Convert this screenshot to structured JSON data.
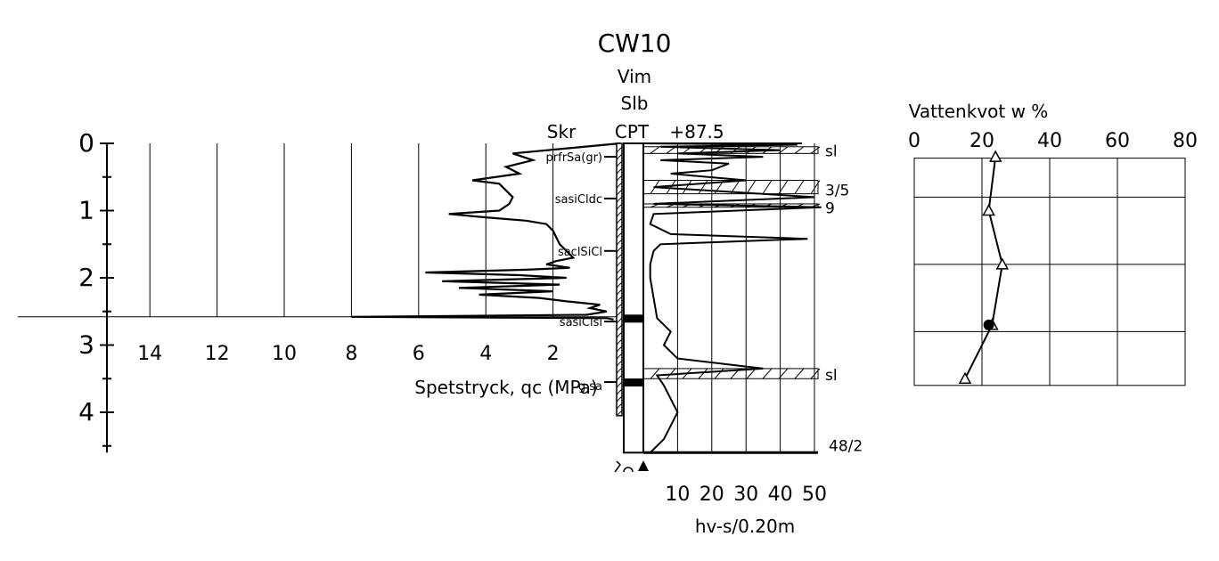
{
  "header": {
    "borehole": "CW10",
    "methods": [
      "Vim",
      "Slb"
    ],
    "col_skr": "Skr",
    "col_cpt": "CPT",
    "level": "+87.5"
  },
  "depth_axis": {
    "min": 0,
    "max": 4.6,
    "tick_labels": [
      "0",
      "1",
      "2",
      "3",
      "4"
    ]
  },
  "cpt": {
    "xlabel": "Spetstryck, qc (MPa)",
    "ticks": [
      "14",
      "12",
      "10",
      "8",
      "6",
      "4",
      "2"
    ],
    "xlim": [
      0,
      15
    ],
    "profile": [
      [
        0.0,
        0.0
      ],
      [
        0.15,
        3.2
      ],
      [
        0.25,
        2.6
      ],
      [
        0.35,
        3.4
      ],
      [
        0.45,
        3.0
      ],
      [
        0.55,
        4.4
      ],
      [
        0.6,
        3.6
      ],
      [
        0.7,
        3.4
      ],
      [
        0.8,
        3.2
      ],
      [
        0.9,
        3.3
      ],
      [
        1.0,
        3.6
      ],
      [
        1.05,
        5.1
      ],
      [
        1.1,
        4.0
      ],
      [
        1.15,
        2.8
      ],
      [
        1.2,
        2.2
      ],
      [
        1.3,
        2.0
      ],
      [
        1.4,
        1.9
      ],
      [
        1.5,
        1.8
      ],
      [
        1.6,
        1.6
      ],
      [
        1.7,
        1.4
      ],
      [
        1.75,
        1.9
      ],
      [
        1.8,
        2.2
      ],
      [
        1.85,
        1.5
      ],
      [
        1.88,
        2.8
      ],
      [
        1.92,
        5.8
      ],
      [
        1.96,
        3.0
      ],
      [
        2.0,
        1.6
      ],
      [
        2.05,
        5.3
      ],
      [
        2.1,
        1.8
      ],
      [
        2.15,
        4.8
      ],
      [
        2.2,
        2.0
      ],
      [
        2.25,
        4.2
      ],
      [
        2.3,
        2.4
      ],
      [
        2.35,
        1.6
      ],
      [
        2.4,
        0.6
      ],
      [
        2.45,
        0.9
      ],
      [
        2.5,
        0.4
      ],
      [
        2.55,
        1.0
      ],
      [
        2.58,
        8.0
      ],
      [
        2.6,
        0.4
      ],
      [
        2.62,
        0.2
      ]
    ],
    "refusal_depth": 2.58
  },
  "soil_labels": [
    {
      "text": "prfrSa(gr)",
      "depth": 0.2
    },
    {
      "text": "sasiCldc",
      "depth": 0.82
    },
    {
      "text": "saclSiCl",
      "depth": 1.6
    },
    {
      "text": "sasiClsi",
      "depth": 2.65
    },
    {
      "text": "g sa",
      "depth": 3.6
    }
  ],
  "weight_sounding": {
    "xlabel": "hv-s/0.20m",
    "ticks": [
      "10",
      "20",
      "30",
      "40",
      "50"
    ],
    "xlim": [
      0,
      55
    ],
    "profile": [
      [
        0.0,
        0.0
      ],
      [
        0.02,
        45
      ],
      [
        0.05,
        5
      ],
      [
        0.1,
        40
      ],
      [
        0.15,
        10
      ],
      [
        0.2,
        35
      ],
      [
        0.25,
        5
      ],
      [
        0.3,
        25
      ],
      [
        0.4,
        20
      ],
      [
        0.45,
        8
      ],
      [
        0.55,
        30
      ],
      [
        0.65,
        3
      ],
      [
        0.8,
        50
      ],
      [
        0.9,
        3
      ],
      [
        0.95,
        52
      ],
      [
        1.05,
        3
      ],
      [
        1.2,
        2
      ],
      [
        1.35,
        8
      ],
      [
        1.42,
        48
      ],
      [
        1.5,
        5
      ],
      [
        1.6,
        3
      ],
      [
        1.8,
        2
      ],
      [
        2.0,
        2
      ],
      [
        2.3,
        3
      ],
      [
        2.6,
        4
      ],
      [
        2.8,
        8
      ],
      [
        3.0,
        6
      ],
      [
        3.2,
        10
      ],
      [
        3.35,
        35
      ],
      [
        3.45,
        4
      ],
      [
        3.6,
        6
      ],
      [
        3.8,
        8
      ],
      [
        4.0,
        10
      ],
      [
        4.2,
        8
      ],
      [
        4.4,
        6
      ],
      [
        4.6,
        2
      ]
    ],
    "layers": [
      {
        "label": "sl",
        "depth": 0.1,
        "from": 0.05,
        "to": 0.15
      },
      {
        "label": "3/5",
        "depth": 0.68,
        "from": 0.55,
        "to": 0.75
      },
      {
        "label": "9",
        "depth": 0.95,
        "from": 0.9,
        "to": 0.95
      },
      {
        "label": "sl",
        "depth": 3.43,
        "from": 3.35,
        "to": 3.5
      }
    ],
    "end_label": "48/2",
    "end_depth": 4.6
  },
  "water_content": {
    "title": "Vattenkvot w %",
    "ticks": [
      "0",
      "20",
      "40",
      "60",
      "80"
    ],
    "xlim": [
      0,
      80
    ],
    "points": [
      {
        "w": 24,
        "depth": 0.2,
        "type": "triangle"
      },
      {
        "w": 22,
        "depth": 1.0,
        "type": "triangle"
      },
      {
        "w": 26,
        "depth": 1.8,
        "type": "triangle"
      },
      {
        "w": 23,
        "depth": 2.7,
        "type": "triangle"
      },
      {
        "w": 22,
        "depth": 2.7,
        "type": "circle"
      },
      {
        "w": 15,
        "depth": 3.5,
        "type": "triangle"
      }
    ]
  }
}
